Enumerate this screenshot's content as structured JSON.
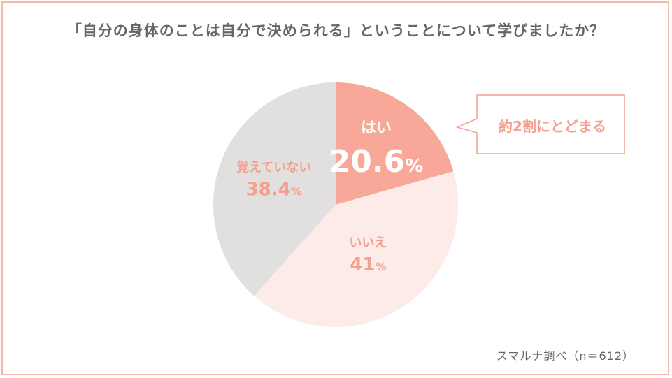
{
  "title": "「自分の身体のことは自分で決められる」ということについて学びましたか？",
  "source": "スマルナ調べ（n＝612）",
  "callout": "約2割にとどまる",
  "chart_data": {
    "type": "pie",
    "title": "「自分の身体のことは自分で決められる」ということについて学びましたか？",
    "sample_size_label": "n＝612",
    "slices": [
      {
        "label": "はい",
        "value": 20.6,
        "value_text": "20.6",
        "unit": "%",
        "color": "#f8a898",
        "text_color": "#ffffff"
      },
      {
        "label": "いいえ",
        "value": 41,
        "value_text": "41",
        "unit": "%",
        "color": "#fdebe8",
        "text_color": "#f4a090"
      },
      {
        "label": "覚えていない",
        "value": 38.4,
        "value_text": "38.4",
        "unit": "%",
        "color": "#e2dfdf",
        "text_color": "#f4a090"
      }
    ]
  }
}
